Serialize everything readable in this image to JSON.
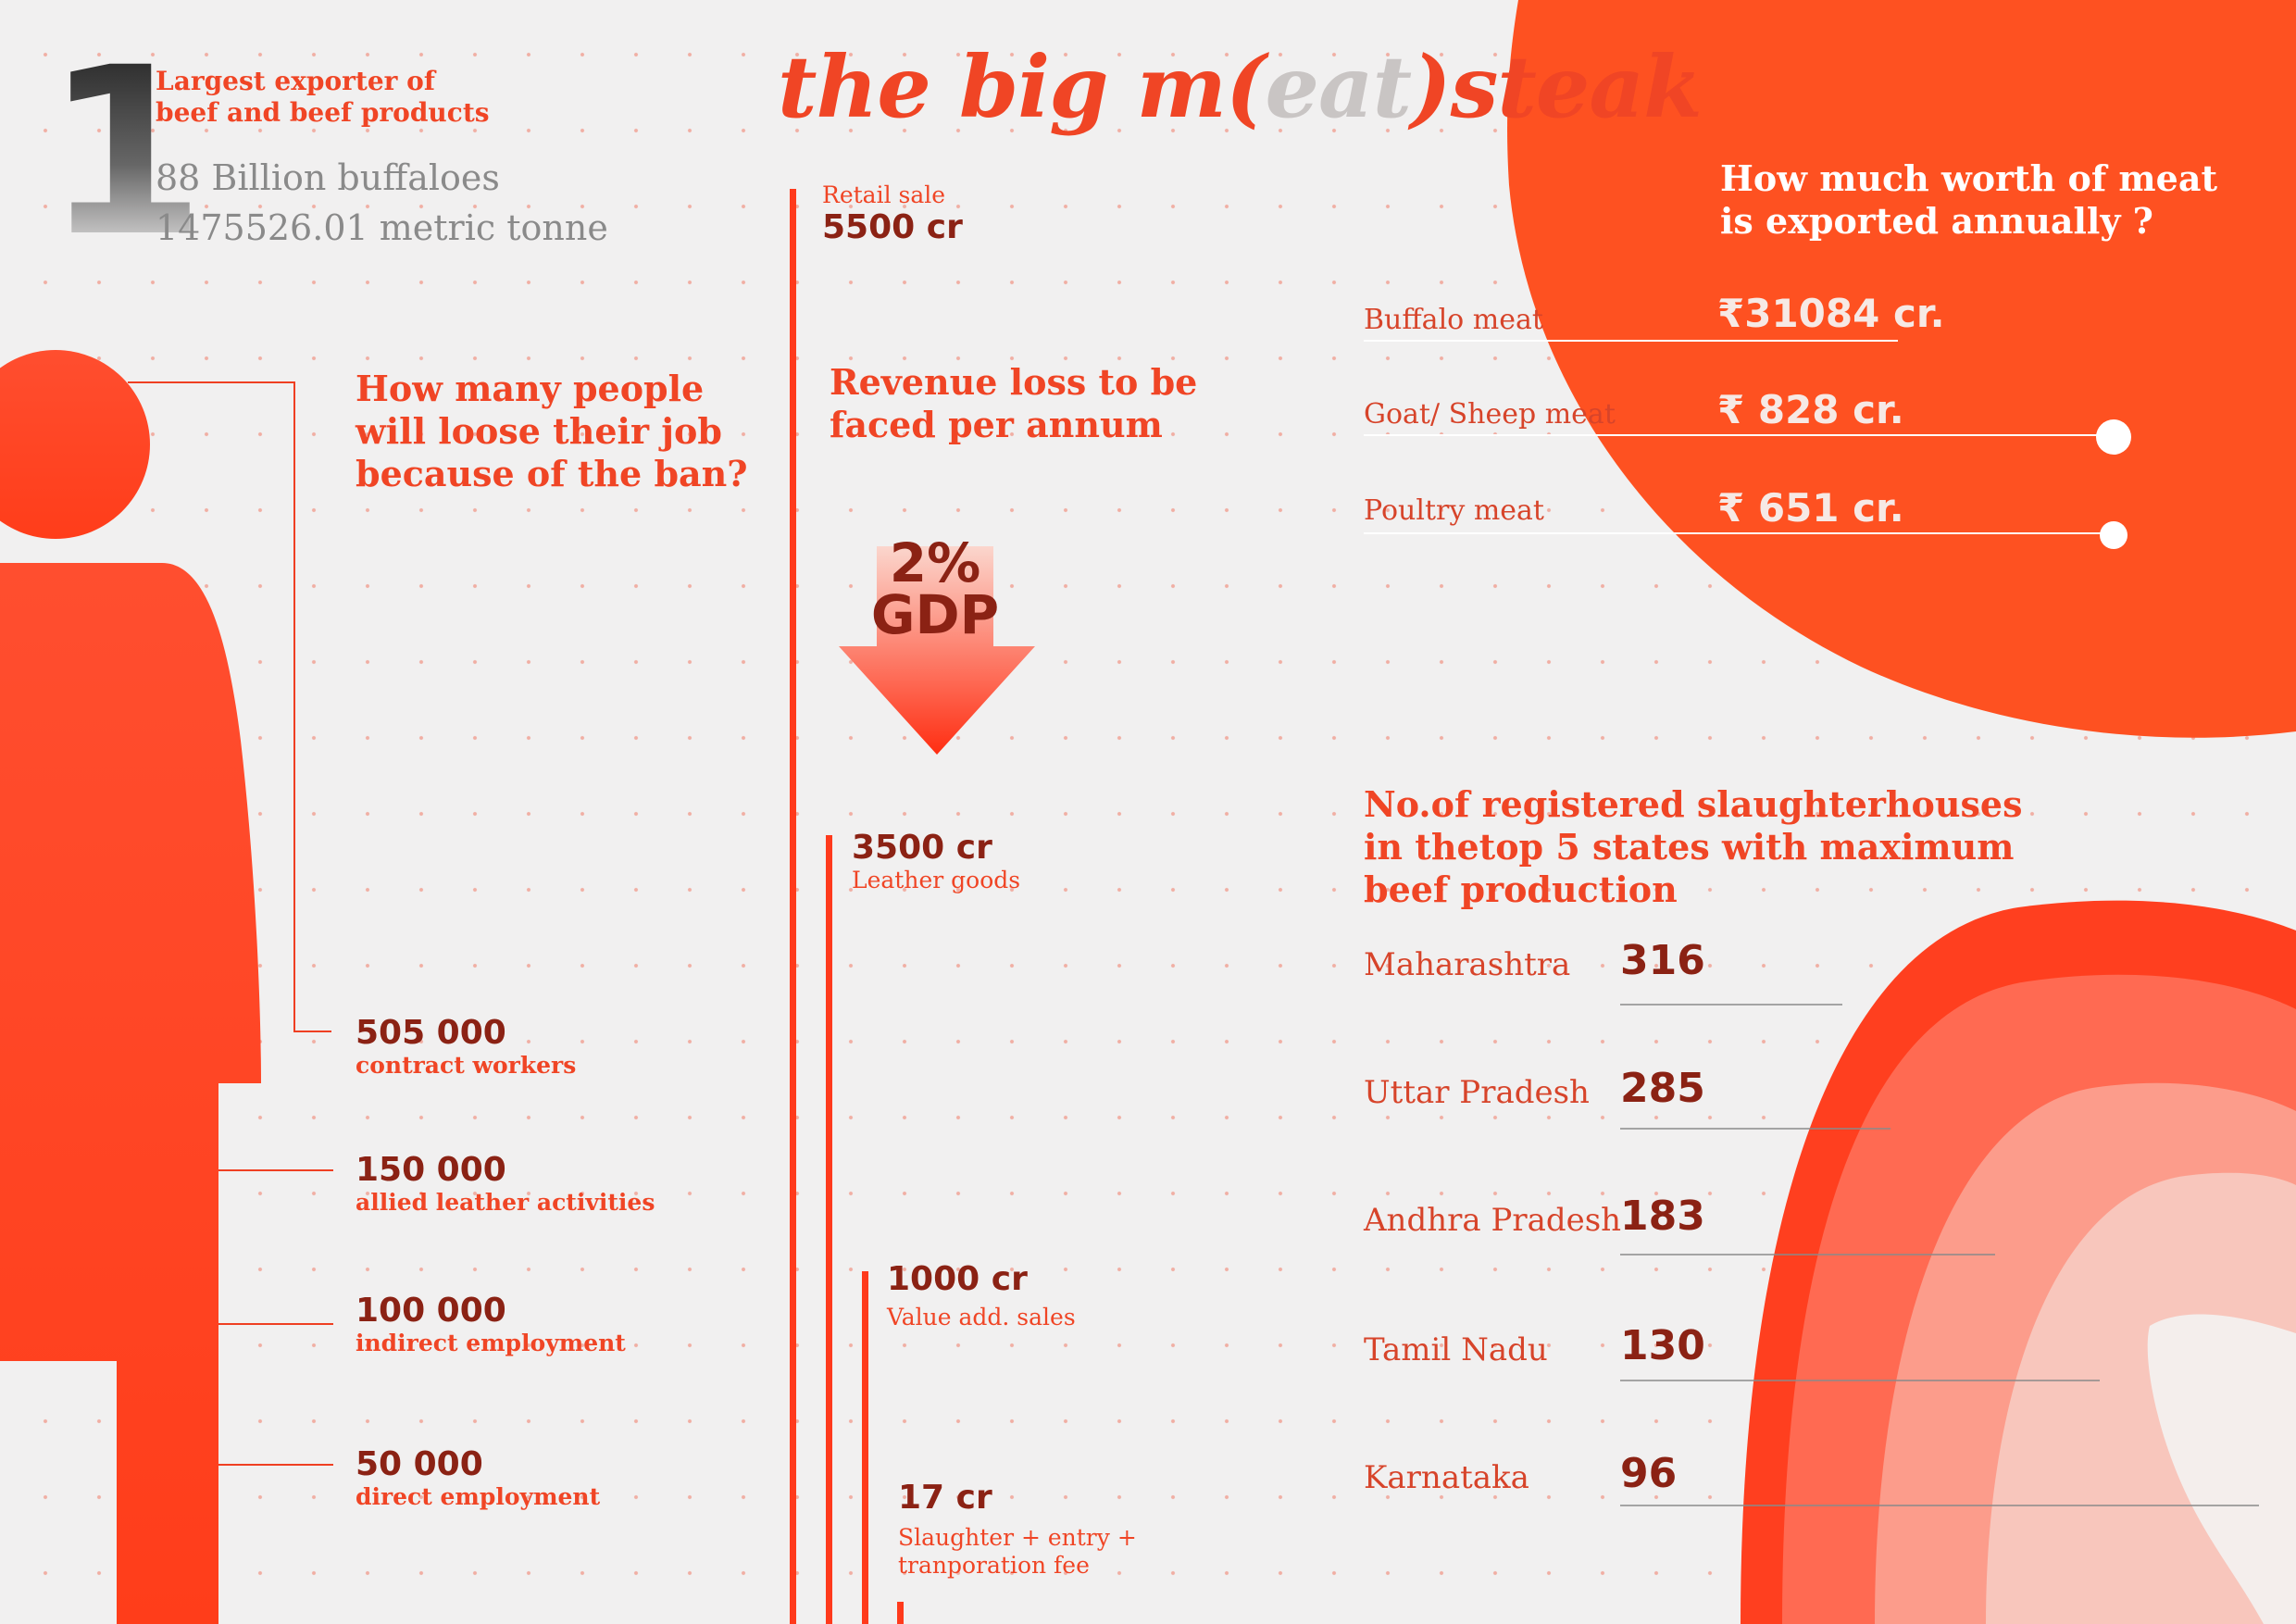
{
  "title": {
    "prefix": "the big m",
    "open": "(",
    "eat": "eat",
    "close": ")",
    "suffix": "steak"
  },
  "colors": {
    "accent": "#f04525",
    "dark": "#8b2214",
    "background": "#f1f0f0",
    "blob": "#fe5121"
  },
  "rank": {
    "number": "1",
    "label_line1": "Largest exporter of",
    "label_line2": "beef and beef products",
    "stat1": "88 Billion buffaloes",
    "stat2": "1475526.01 metric tonne"
  },
  "jobs": {
    "question": [
      "How many people",
      "will loose their job",
      "because of the ban?"
    ],
    "items": [
      {
        "value": "505 000",
        "label": "contract workers"
      },
      {
        "value": "150 000",
        "label": "allied leather activities"
      },
      {
        "value": "100 000",
        "label": "indirect employment"
      },
      {
        "value": "50 000",
        "label": "direct employment"
      }
    ]
  },
  "revenue": {
    "question": [
      "Revenue loss to be",
      "faced per annum"
    ],
    "gdp_percent": "2%",
    "gdp_label": "GDP",
    "items": [
      {
        "label": "Retail sale",
        "value": "5500 cr"
      },
      {
        "value": "3500 cr",
        "label": "Leather goods"
      },
      {
        "value": "1000 cr",
        "label": "Value add. sales"
      },
      {
        "value": "17 cr",
        "label_line1": "Slaughter + entry +",
        "label_line2": "tranporation  fee"
      }
    ]
  },
  "exports": {
    "question": [
      "How much worth of meat",
      "is exported annually ?"
    ],
    "items": [
      {
        "label": "Buffalo meat",
        "value": "₹31084 cr."
      },
      {
        "label": "Goat/ Sheep meat",
        "value": "₹ 828 cr."
      },
      {
        "label": "Poultry meat",
        "value": "₹ 651 cr."
      }
    ]
  },
  "slaughterhouses": {
    "title": [
      "No.of registered slaughterhouses",
      "in thetop 5 states with maximum",
      "beef production"
    ],
    "states": [
      {
        "name": "Maharashtra",
        "count": "316"
      },
      {
        "name": "Uttar Pradesh",
        "count": "285"
      },
      {
        "name": "Andhra Pradesh",
        "count": "183"
      },
      {
        "name": "Tamil Nadu",
        "count": "130"
      },
      {
        "name": "Karnataka",
        "count": "96"
      }
    ]
  }
}
